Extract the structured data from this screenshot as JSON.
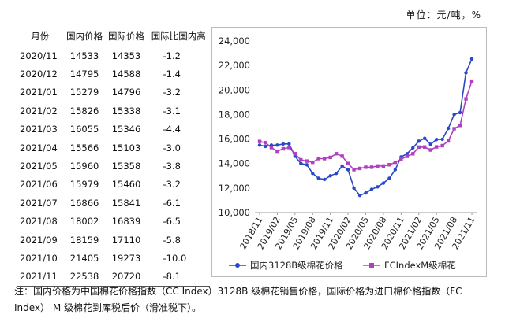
{
  "unit_label": "单位：元/吨，%",
  "table": {
    "headers": [
      "月份",
      "国内价格",
      "国际价格",
      "国际比国内高"
    ],
    "rows": [
      [
        "2020/11",
        "14533",
        "14353",
        "-1.2"
      ],
      [
        "2020/12",
        "14795",
        "14588",
        "-1.4"
      ],
      [
        "2021/01",
        "15279",
        "14796",
        "-3.2"
      ],
      [
        "2021/02",
        "15826",
        "15338",
        "-3.1"
      ],
      [
        "2021/03",
        "16055",
        "15346",
        "-4.4"
      ],
      [
        "2021/04",
        "15566",
        "15103",
        "-3.0"
      ],
      [
        "2021/05",
        "15960",
        "15358",
        "-3.8"
      ],
      [
        "2021/06",
        "15979",
        "15460",
        "-3.2"
      ],
      [
        "2021/07",
        "16866",
        "15841",
        "-6.1"
      ],
      [
        "2021/08",
        "18002",
        "16839",
        "-6.5"
      ],
      [
        "2021/09",
        "18159",
        "17110",
        "-5.8"
      ],
      [
        "2021/10",
        "21405",
        "19273",
        "-10.0"
      ],
      [
        "2021/11",
        "22538",
        "20720",
        "-8.1"
      ]
    ]
  },
  "note": "注：国内价格为中国棉花价格指数（CC Index）3128B 级棉花销售价格，国际价格为进口棉价格指数（FC Index） M 级棉花到库税后价（滑准税下）。",
  "chart_data": {
    "type": "line",
    "ylim": [
      10000,
      24000
    ],
    "yticks": [
      "10,000",
      "12,000",
      "14,000",
      "16,000",
      "18,000",
      "20,000",
      "22,000",
      "24,000"
    ],
    "xticks": [
      "2018/11",
      "2019/02",
      "2019/05",
      "2019/08",
      "2019/11",
      "2020/02",
      "2020/05",
      "2020/08",
      "2020/11",
      "2021/02",
      "2021/05",
      "2021/08",
      "2021/11"
    ],
    "legend_position": "bottom",
    "series": [
      {
        "name": "国内3128B级棉花价格",
        "color": "#2848c8",
        "marker": "circle",
        "values": [
          15500,
          15400,
          15500,
          15500,
          15600,
          15600,
          14600,
          14000,
          13900,
          13200,
          12800,
          12700,
          13000,
          13200,
          13800,
          13500,
          12000,
          11400,
          11600,
          11900,
          12100,
          12400,
          12800,
          13500,
          14533,
          14795,
          15279,
          15826,
          16055,
          15566,
          15960,
          15979,
          16866,
          18002,
          18159,
          21405,
          22538
        ]
      },
      {
        "name": "FCIndexM级棉花",
        "color": "#b040c0",
        "marker": "square",
        "values": [
          15800,
          15700,
          15300,
          15000,
          15200,
          15300,
          14800,
          14300,
          14200,
          14100,
          14400,
          14400,
          14500,
          14800,
          14600,
          14000,
          13500,
          13600,
          13700,
          13700,
          13800,
          13800,
          13900,
          14100,
          14353,
          14588,
          14796,
          15338,
          15346,
          15103,
          15358,
          15460,
          15841,
          16839,
          17110,
          19273,
          20720
        ]
      }
    ]
  }
}
